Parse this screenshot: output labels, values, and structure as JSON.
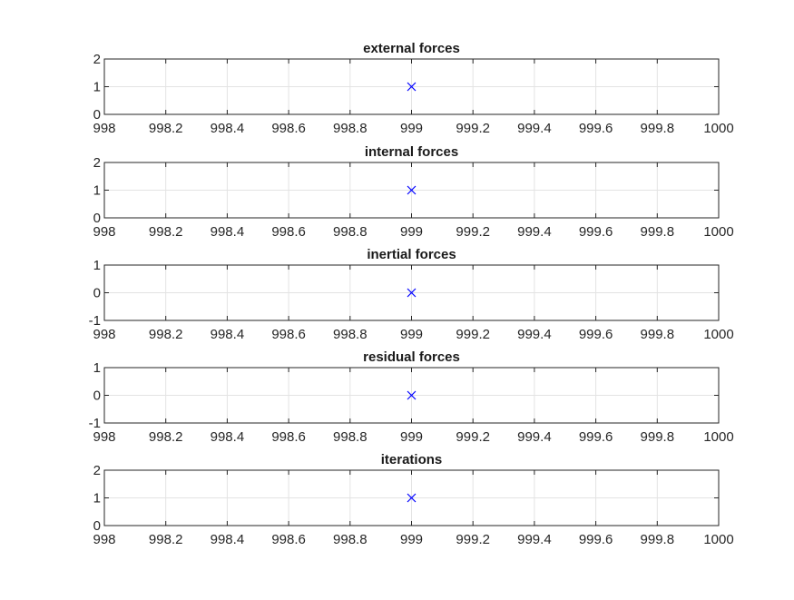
{
  "chart_data": [
    {
      "type": "scatter",
      "title": "external forces",
      "xlim": [
        998,
        1000
      ],
      "ylim": [
        0,
        2
      ],
      "xticks": [
        998,
        998.2,
        998.4,
        998.6,
        998.8,
        999,
        999.2,
        999.4,
        999.6,
        999.8,
        1000
      ],
      "xtick_labels": [
        "998",
        "998.2",
        "998.4",
        "998.6",
        "998.8",
        "999",
        "999.2",
        "999.4",
        "999.6",
        "999.8",
        "1000"
      ],
      "yticks": [
        0,
        1,
        2
      ],
      "ytick_labels": [
        "0",
        "1",
        "2"
      ],
      "points": [
        {
          "x": 999,
          "y": 1
        }
      ],
      "marker": "x",
      "color": "#0000ff",
      "grid": true
    },
    {
      "type": "scatter",
      "title": "internal forces",
      "xlim": [
        998,
        1000
      ],
      "ylim": [
        0,
        2
      ],
      "xticks": [
        998,
        998.2,
        998.4,
        998.6,
        998.8,
        999,
        999.2,
        999.4,
        999.6,
        999.8,
        1000
      ],
      "xtick_labels": [
        "998",
        "998.2",
        "998.4",
        "998.6",
        "998.8",
        "999",
        "999.2",
        "999.4",
        "999.6",
        "999.8",
        "1000"
      ],
      "yticks": [
        0,
        1,
        2
      ],
      "ytick_labels": [
        "0",
        "1",
        "2"
      ],
      "points": [
        {
          "x": 999,
          "y": 1
        }
      ],
      "marker": "x",
      "color": "#0000ff",
      "grid": true
    },
    {
      "type": "scatter",
      "title": "inertial forces",
      "xlim": [
        998,
        1000
      ],
      "ylim": [
        -1,
        1
      ],
      "xticks": [
        998,
        998.2,
        998.4,
        998.6,
        998.8,
        999,
        999.2,
        999.4,
        999.6,
        999.8,
        1000
      ],
      "xtick_labels": [
        "998",
        "998.2",
        "998.4",
        "998.6",
        "998.8",
        "999",
        "999.2",
        "999.4",
        "999.6",
        "999.8",
        "1000"
      ],
      "yticks": [
        -1,
        0,
        1
      ],
      "ytick_labels": [
        "-1",
        "0",
        "1"
      ],
      "points": [
        {
          "x": 999,
          "y": 0
        }
      ],
      "marker": "x",
      "color": "#0000ff",
      "grid": true
    },
    {
      "type": "scatter",
      "title": "residual forces",
      "xlim": [
        998,
        1000
      ],
      "ylim": [
        -1,
        1
      ],
      "xticks": [
        998,
        998.2,
        998.4,
        998.6,
        998.8,
        999,
        999.2,
        999.4,
        999.6,
        999.8,
        1000
      ],
      "xtick_labels": [
        "998",
        "998.2",
        "998.4",
        "998.6",
        "998.8",
        "999",
        "999.2",
        "999.4",
        "999.6",
        "999.8",
        "1000"
      ],
      "yticks": [
        -1,
        0,
        1
      ],
      "ytick_labels": [
        "-1",
        "0",
        "1"
      ],
      "points": [
        {
          "x": 999,
          "y": 0
        }
      ],
      "marker": "x",
      "color": "#0000ff",
      "grid": true
    },
    {
      "type": "scatter",
      "title": "iterations",
      "xlim": [
        998,
        1000
      ],
      "ylim": [
        0,
        2
      ],
      "xticks": [
        998,
        998.2,
        998.4,
        998.6,
        998.8,
        999,
        999.2,
        999.4,
        999.6,
        999.8,
        1000
      ],
      "xtick_labels": [
        "998",
        "998.2",
        "998.4",
        "998.6",
        "998.8",
        "999",
        "999.2",
        "999.4",
        "999.6",
        "999.8",
        "1000"
      ],
      "yticks": [
        0,
        1,
        2
      ],
      "ytick_labels": [
        "0",
        "1",
        "2"
      ],
      "points": [
        {
          "x": 999,
          "y": 1
        }
      ],
      "marker": "x",
      "color": "#0000ff",
      "grid": true
    }
  ]
}
